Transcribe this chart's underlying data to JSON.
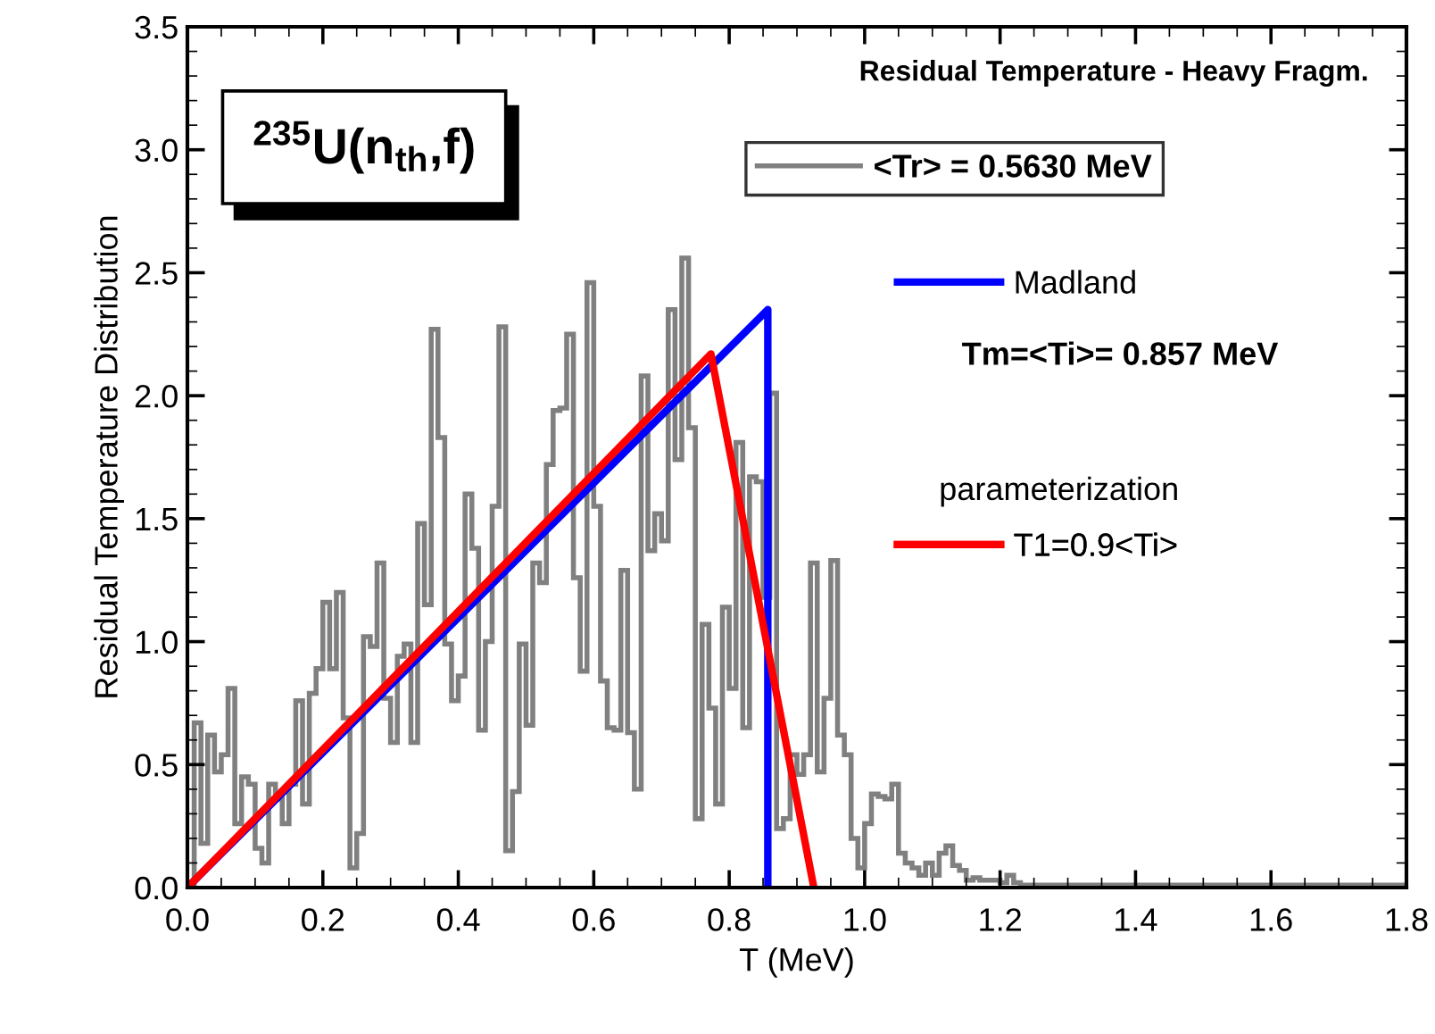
{
  "chart_data": {
    "type": "histogram",
    "title": "Residual Temperature - Heavy Fragm.",
    "xlabel": "T (MeV)",
    "ylabel": "Residual Temperature Distribution",
    "bins": [
      0.01,
      0.02,
      0.03,
      0.04,
      0.05,
      0.06,
      0.07,
      0.08,
      0.09,
      0.1,
      0.11,
      0.12,
      0.13,
      0.14,
      0.15,
      0.16,
      0.17,
      0.18,
      0.19,
      0.2,
      0.21,
      0.22,
      0.23,
      0.24,
      0.25,
      0.26,
      0.27,
      0.28,
      0.29,
      0.3,
      0.31,
      0.32,
      0.33,
      0.34,
      0.35,
      0.36,
      0.37,
      0.38,
      0.39,
      0.4,
      0.41,
      0.42,
      0.43,
      0.44,
      0.45,
      0.46,
      0.47,
      0.48,
      0.49,
      0.5,
      0.51,
      0.52,
      0.53,
      0.54,
      0.55,
      0.56,
      0.57,
      0.58,
      0.59,
      0.6,
      0.61,
      0.62,
      0.63,
      0.64,
      0.65,
      0.66,
      0.67,
      0.68,
      0.69,
      0.7,
      0.71,
      0.72,
      0.73,
      0.74,
      0.75,
      0.76,
      0.77,
      0.78,
      0.79,
      0.8,
      0.81,
      0.82,
      0.83,
      0.84,
      0.85,
      0.86,
      0.87,
      0.88,
      0.89,
      0.9,
      0.91,
      0.92,
      0.93,
      0.94,
      0.95,
      0.96,
      0.97,
      0.98,
      0.99,
      1.0,
      1.01,
      1.02,
      1.03,
      1.04,
      1.05,
      1.06,
      1.07,
      1.08,
      1.09,
      1.1,
      1.11,
      1.12,
      1.13,
      1.14,
      1.15,
      1.16,
      1.17,
      1.18,
      1.19,
      1.2,
      1.21,
      1.22,
      1.23,
      1.8
    ],
    "series": [
      {
        "name": "<Tr> = 0.5630 MeV",
        "color": "#808080",
        "values": [
          0.67,
          0.18,
          0.62,
          0.47,
          0.54,
          0.81,
          0.26,
          0.45,
          0.42,
          0.16,
          0.1,
          0.42,
          0.36,
          0.26,
          0.42,
          0.76,
          0.34,
          0.79,
          0.89,
          1.16,
          0.89,
          1.2,
          0.69,
          0.08,
          0.22,
          1.02,
          0.98,
          1.32,
          0.77,
          0.59,
          0.94,
          0.99,
          0.59,
          1.48,
          1.15,
          2.27,
          1.83,
          0.99,
          0.76,
          0.86,
          1.6,
          1.38,
          0.64,
          1.0,
          1.55,
          2.28,
          0.15,
          0.39,
          0.99,
          0.66,
          1.32,
          1.24,
          1.72,
          1.94,
          1.95,
          2.25,
          1.26,
          0.88,
          2.46,
          1.55,
          0.84,
          0.65,
          0.64,
          1.29,
          0.63,
          0.4,
          2.08,
          1.37,
          1.52,
          1.41,
          2.35,
          1.74,
          2.56,
          1.87,
          0.28,
          1.07,
          0.73,
          0.34,
          1.14,
          0.81,
          1.81,
          0.65,
          1.67,
          1.65,
          1.18,
          2.01,
          0.24,
          0.28,
          0.54,
          0.46,
          0.54,
          1.32,
          0.47,
          0.77,
          1.33,
          0.62,
          0.54,
          0.2,
          0.08,
          0.26,
          0.38,
          0.37,
          0.36,
          0.42,
          0.14,
          0.1,
          0.08,
          0.05,
          0.1,
          0.05,
          0.14,
          0.17,
          0.09,
          0.07,
          0.03,
          0.04,
          0.03,
          0.03,
          0.03,
          0.02,
          0.05,
          0.02,
          0.01
        ]
      },
      {
        "type": "line",
        "name": "Madland",
        "color": "#0000ff",
        "x": [
          0,
          0.857,
          0.857
        ],
        "values": [
          0,
          2.35,
          0
        ]
      },
      {
        "type": "line",
        "name": "T1=0.9<Ti>",
        "color": "#ff0000",
        "x": [
          0,
          0.773,
          0.925
        ],
        "values": [
          0,
          2.17,
          0
        ]
      }
    ],
    "annotations": [
      "$^{235}$U(n$_{th}$,f)",
      "Tm=<Ti>= 0.857 MeV",
      "parameterization"
    ],
    "xlim": [
      0,
      1.8
    ],
    "ylim": [
      0,
      3.5
    ],
    "xticks": [
      {
        "value": 0,
        "label": "0.0"
      },
      {
        "value": 0.2,
        "label": "0.2"
      },
      {
        "value": 0.4,
        "label": "0.4"
      },
      {
        "value": 0.6,
        "label": "0.6"
      },
      {
        "value": 0.8,
        "label": "0.8"
      },
      {
        "value": 1,
        "label": "1.0"
      },
      {
        "value": 1.2,
        "label": "1.2"
      },
      {
        "value": 1.4,
        "label": "1.4"
      },
      {
        "value": 1.6,
        "label": "1.6"
      },
      {
        "value": 1.8,
        "label": "1.8"
      }
    ],
    "yticks": [
      {
        "value": 0,
        "label": "0.0"
      },
      {
        "value": 0.5,
        "label": "0.5"
      },
      {
        "value": 1,
        "label": "1.0"
      },
      {
        "value": 1.5,
        "label": "1.5"
      },
      {
        "value": 2,
        "label": "2.0"
      },
      {
        "value": 2.5,
        "label": "2.5"
      },
      {
        "value": 3,
        "label": "3.0"
      },
      {
        "value": 3.5,
        "label": "3.5"
      }
    ],
    "grid": false,
    "legend": "top right"
  }
}
